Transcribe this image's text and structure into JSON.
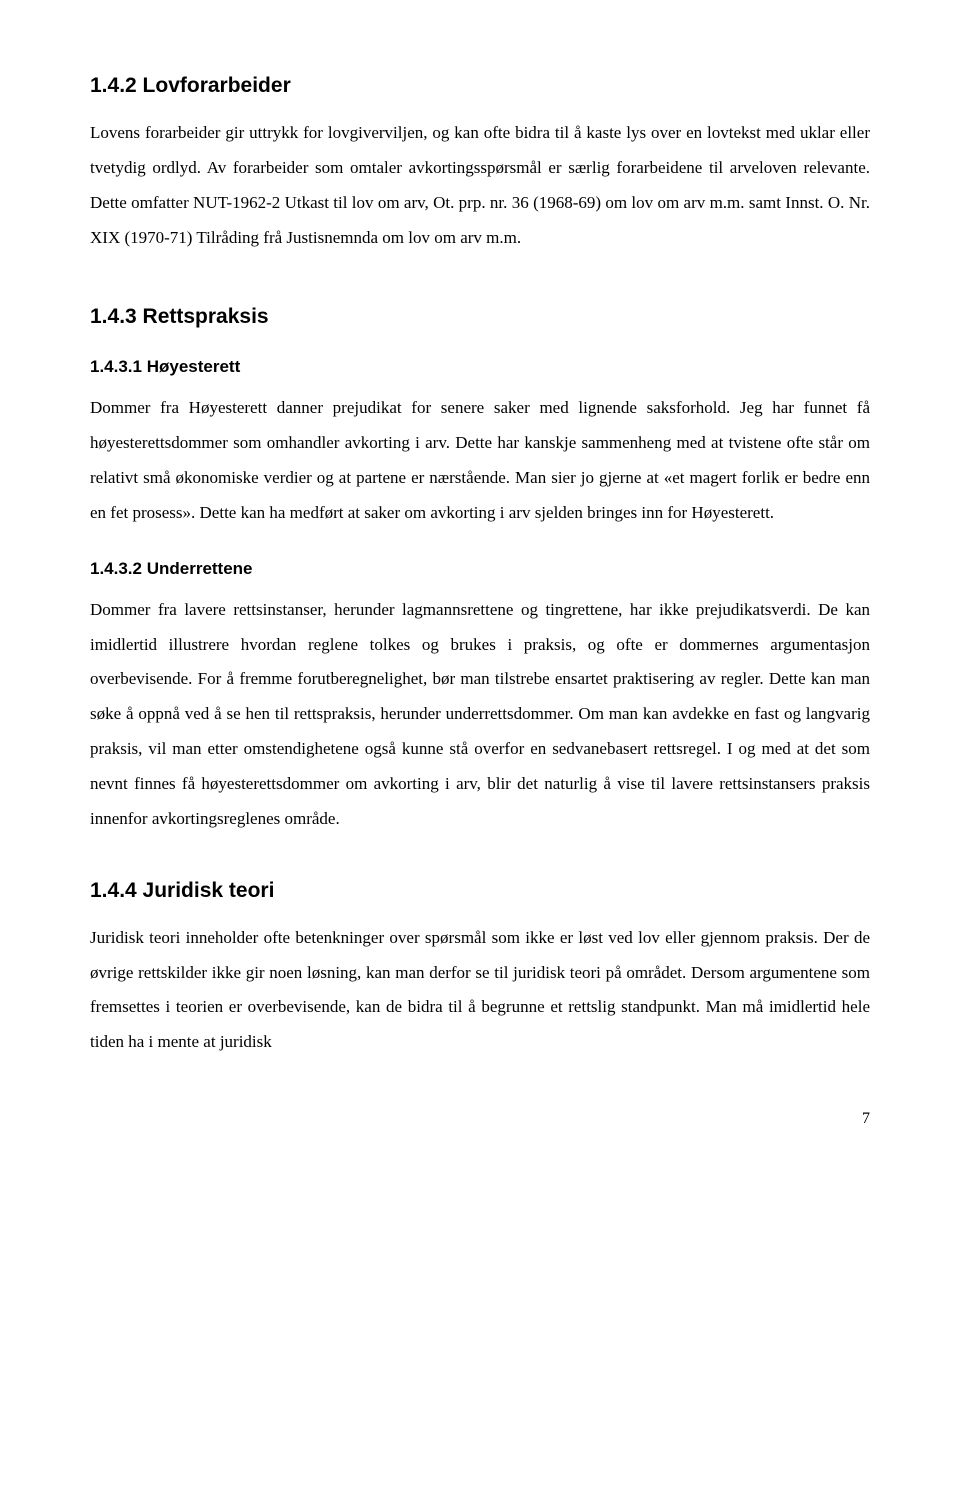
{
  "s1": {
    "heading": "1.4.2 Lovforarbeider",
    "p1": "Lovens forarbeider gir uttrykk for lovgiverviljen, og kan ofte bidra til å kaste lys over en lovtekst med uklar eller tvetydig ordlyd. Av forarbeider som omtaler avkortingsspørsmål er særlig forarbeidene til arveloven relevante. Dette omfatter NUT-1962-2 Utkast til lov om arv, Ot. prp. nr. 36 (1968-69) om lov om arv m.m. samt Innst. O. Nr. XIX (1970-71) Tilråding frå Justisnemnda om lov om arv m.m."
  },
  "s2": {
    "heading": "1.4.3 Rettspraksis"
  },
  "s3": {
    "heading": "1.4.3.1 Høyesterett",
    "p1": "Dommer fra Høyesterett danner prejudikat for senere saker med lignende saksforhold. Jeg har funnet få høyesterettsdommer som omhandler avkorting i arv. Dette har kanskje sammenheng med at tvistene ofte står om relativt små økonomiske verdier og at partene er nærstående. Man sier jo gjerne at «et magert forlik er bedre enn en fet prosess». Dette kan ha medført at saker om avkorting i arv sjelden bringes inn for Høyesterett."
  },
  "s4": {
    "heading": "1.4.3.2 Underrettene",
    "p1": "Dommer fra lavere rettsinstanser, herunder lagmannsrettene og tingrettene, har ikke prejudikatsverdi. De kan imidlertid illustrere hvordan reglene tolkes og brukes i praksis, og ofte er dommernes argumentasjon overbevisende. For å fremme forutberegnelighet, bør man tilstrebe ensartet praktisering av regler. Dette kan man søke å oppnå ved å se hen til rettspraksis, herunder underrettsdommer. Om man kan avdekke en fast og langvarig praksis, vil man etter omstendighetene også kunne stå overfor en sedvanebasert rettsregel. I og med at det som nevnt finnes få høyesterettsdommer om avkorting i arv, blir det naturlig å vise til lavere rettsinstansers praksis innenfor avkortingsreglenes område."
  },
  "s5": {
    "heading": "1.4.4 Juridisk teori",
    "p1": "Juridisk teori inneholder ofte betenkninger over spørsmål som ikke er løst ved lov eller gjennom praksis. Der de øvrige rettskilder ikke gir noen løsning, kan man derfor se til juridisk teori på området. Dersom argumentene som fremsettes i teorien er overbevisende, kan de bidra til å begrunne et rettslig standpunkt. Man må imidlertid hele tiden ha i mente at juridisk"
  },
  "page_number": "7"
}
